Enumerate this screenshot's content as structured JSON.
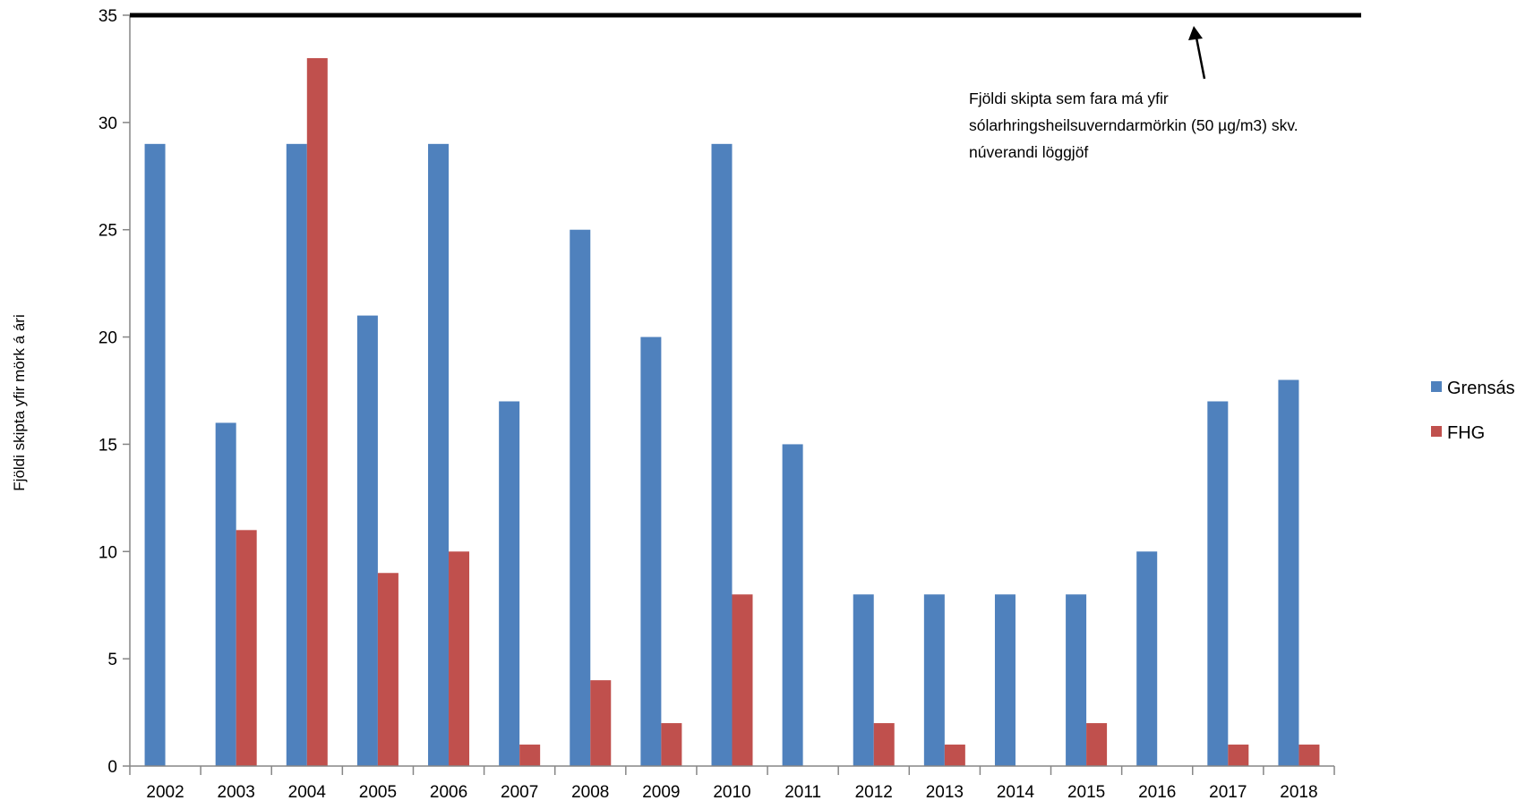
{
  "chart_data": {
    "type": "bar",
    "categories": [
      "2002",
      "2003",
      "2004",
      "2005",
      "2006",
      "2007",
      "2008",
      "2009",
      "2010",
      "2011",
      "2012",
      "2013",
      "2014",
      "2015",
      "2016",
      "2017",
      "2018"
    ],
    "series": [
      {
        "name": "Grensás",
        "color": "#4F81BD",
        "values": [
          29,
          16,
          29,
          21,
          29,
          17,
          25,
          20,
          29,
          15,
          8,
          8,
          8,
          8,
          10,
          17,
          18
        ]
      },
      {
        "name": "FHG",
        "color": "#C0504D",
        "values": [
          0,
          11,
          33,
          9,
          10,
          1,
          4,
          2,
          8,
          0,
          2,
          1,
          0,
          2,
          0,
          1,
          1
        ]
      }
    ],
    "title": "",
    "xlabel": "",
    "ylabel": "Fjöldi skipta yfir mörk á ári",
    "ylim": [
      0,
      35
    ],
    "yticks": [
      0,
      5,
      10,
      15,
      20,
      25,
      30,
      35
    ],
    "grid": false,
    "legend": "right",
    "reference_line": {
      "value": 35,
      "color": "#000000"
    },
    "annotation": {
      "lines": [
        "Fjöldi skipta sem fara má yfir",
        "sólarhringsheilsuverndarmörkin (50 µg/m3) skv.",
        "núverandi löggjöf"
      ]
    }
  }
}
